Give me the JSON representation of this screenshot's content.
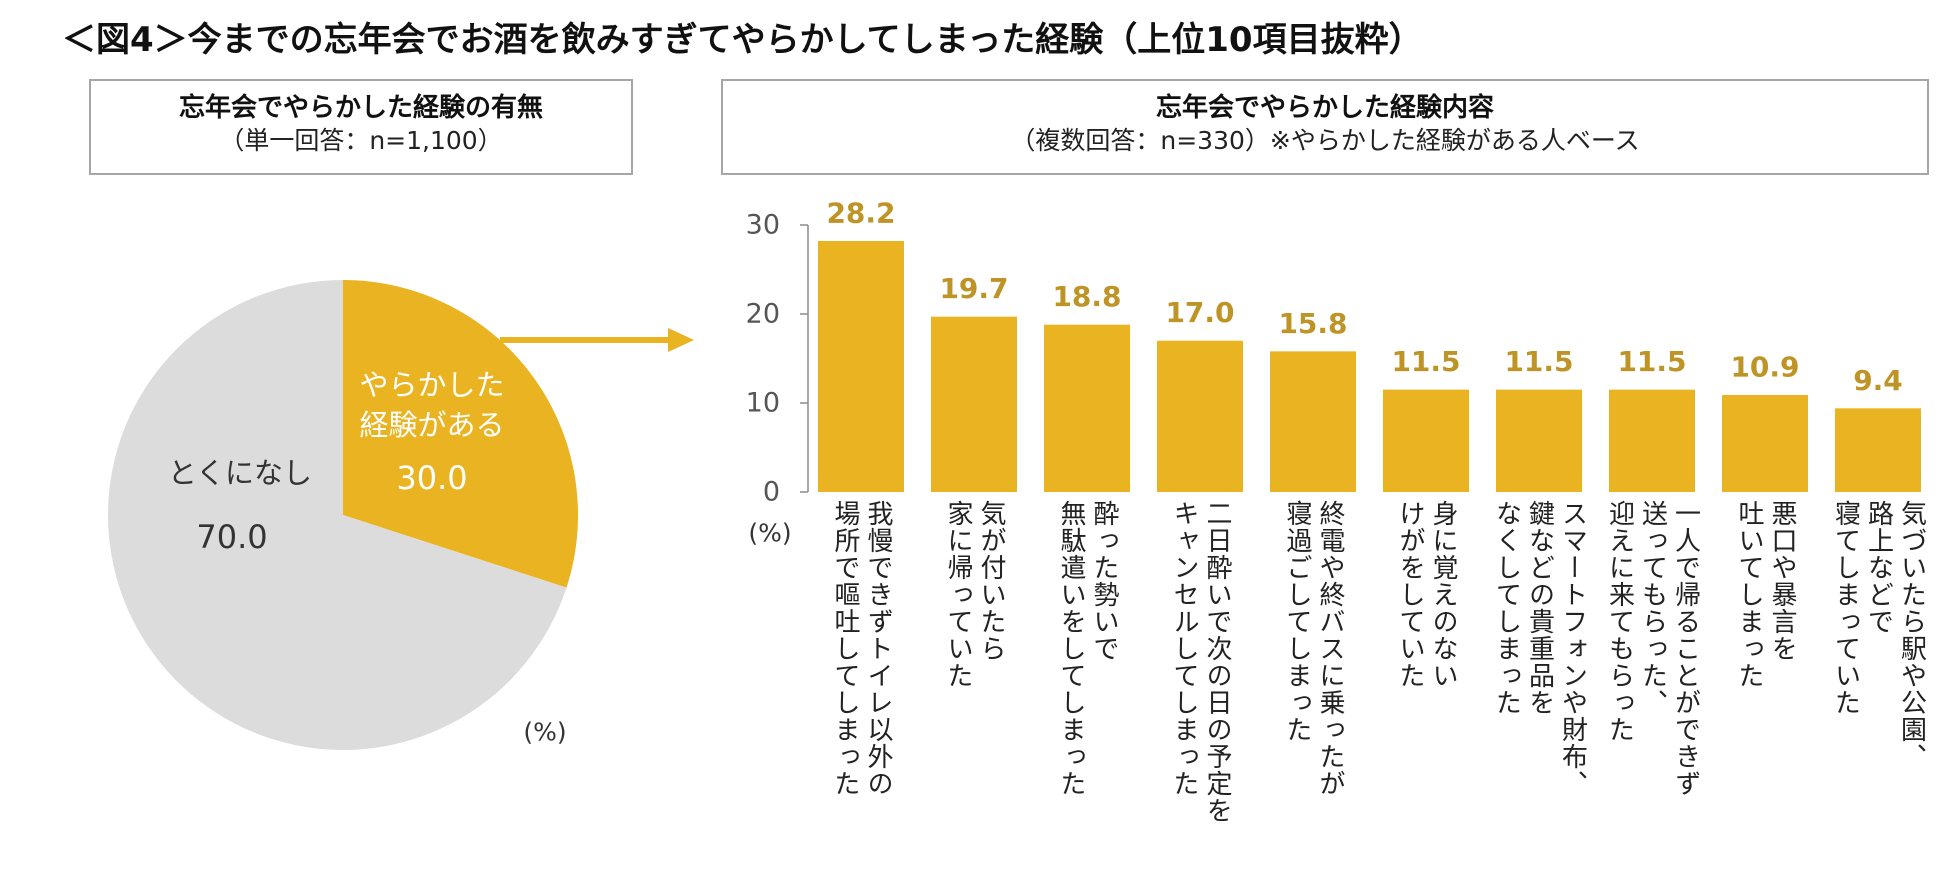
{
  "title": "＜図4＞今までの忘年会でお酒を飲みすぎてやらかしてしまった経験（上位10項目抜粋）",
  "left_panel": {
    "heading": "忘年会でやらかした経験の有無",
    "subheading": "（単一回答：n=1,100）",
    "unit": "(%)"
  },
  "right_panel": {
    "heading": "忘年会でやらかした経験内容",
    "subheading": "（複数回答：n=330）※やらかした経験がある人ベース"
  },
  "colors": {
    "accent": "#E9B321",
    "pie_gray": "#DCDCDC",
    "axis": "#8c8c8c",
    "label_gold": "#BF9426"
  },
  "chart_data": [
    {
      "type": "pie",
      "unit": "(%)",
      "slices": [
        {
          "label": "やらかした経験がある",
          "label_lines": [
            "やらかした",
            "経験がある"
          ],
          "value": 30.0,
          "value_text": "30.0",
          "color": "#E9B321"
        },
        {
          "label": "とくになし",
          "label_lines": [
            "とくになし"
          ],
          "value": 70.0,
          "value_text": "70.0",
          "color": "#DCDCDC"
        }
      ]
    },
    {
      "type": "bar",
      "ylabel": "(%)",
      "ylim": [
        0,
        30
      ],
      "yticks": [
        "0",
        "10",
        "20",
        "30"
      ],
      "categories": [
        "我慢できずトイレ以外の\n場所で嘔吐してしまった",
        "気が付いたら\n家に帰っていた",
        "酔った勢いで\n無駄遣いをしてしまった",
        "二日酔いで次の日の予定を\nキャンセルしてしまった",
        "終電や終バスに乗ったが\n寝過ごしてしまった",
        "身に覚えのない\nけがをしていた",
        "スマートフォンや財布、\n鍵などの貴重品を\nなくしてしまった",
        "一人で帰ることができず\n送ってもらった、\n迎えに来てもらった",
        "悪口や暴言を\n吐いてしまった",
        "気づいたら駅や公園、\n路上などで\n寝てしまっていた"
      ],
      "values": [
        28.2,
        19.7,
        18.8,
        17.0,
        15.8,
        11.5,
        11.5,
        11.5,
        10.9,
        9.4
      ],
      "value_labels": [
        "28.2",
        "19.7",
        "18.8",
        "17.0",
        "15.8",
        "11.5",
        "11.5",
        "11.5",
        "10.9",
        "9.4"
      ]
    }
  ]
}
